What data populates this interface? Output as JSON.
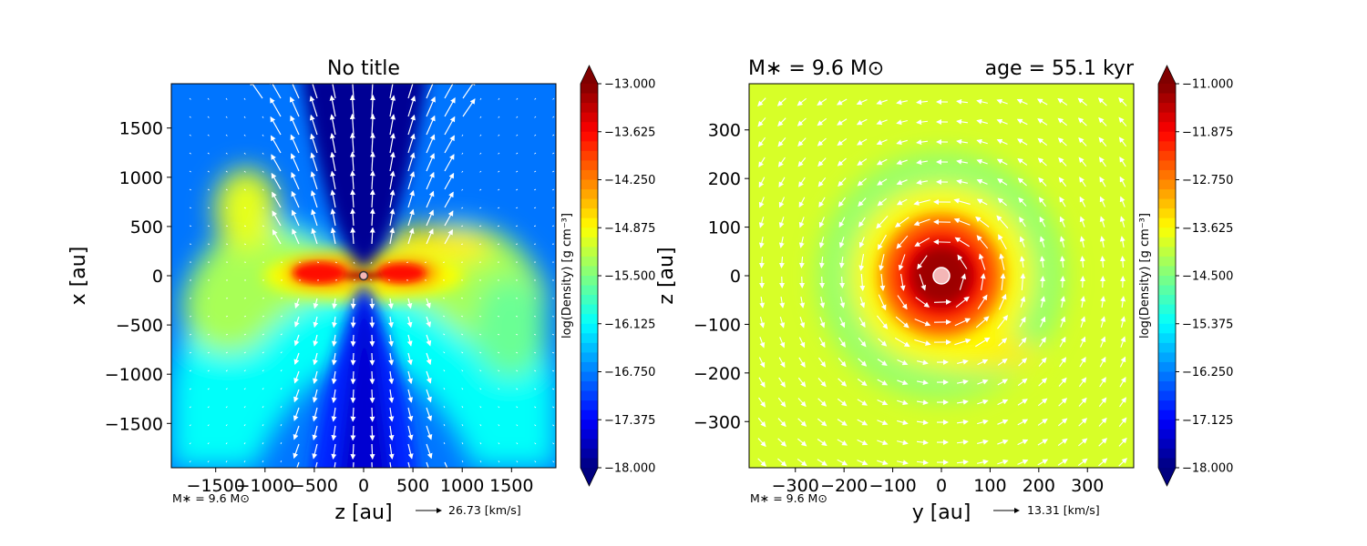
{
  "chart_data": [
    {
      "type": "heatmap",
      "title": "No title",
      "xlabel": "z [au]",
      "ylabel": "x [au]",
      "xlim": [
        -1950,
        1950
      ],
      "ylim": [
        -1950,
        1950
      ],
      "xticks": [
        -1500,
        -1000,
        -500,
        0,
        500,
        1000,
        1500
      ],
      "xtick_labels": [
        "−1500",
        "−1000",
        "−500",
        "0",
        "500",
        "1000",
        "1500"
      ],
      "yticks": [
        1500,
        1000,
        500,
        0,
        -500,
        -1000,
        -1500
      ],
      "ytick_labels": [
        "1500",
        "1000",
        "500",
        "0",
        "−500",
        "−1000",
        "−1500"
      ],
      "colorbar": {
        "label": "log(Density) [g cm⁻³]",
        "min": -18.0,
        "max": -13.0,
        "ticks": [
          -13.0,
          -13.625,
          -14.25,
          -14.875,
          -15.5,
          -16.125,
          -16.75,
          -17.375,
          -18.0
        ],
        "tick_labels": [
          "−13.000",
          "−13.625",
          "−14.250",
          "−14.875",
          "−15.500",
          "−16.125",
          "−16.750",
          "−17.375",
          "−18.000"
        ]
      },
      "mass_note": "M∗ = 9.6 M⊙",
      "velocity_key": "26.73 [km/s]",
      "background_value": -16.8,
      "features": [
        {
          "label": "outflow cavity",
          "value": -17.9,
          "shape": "cone"
        },
        {
          "label": "envelope",
          "value": -15.3,
          "shape": "hourglass"
        },
        {
          "label": "disk",
          "value": -13.8,
          "x": 0,
          "y": 0
        }
      ]
    },
    {
      "type": "heatmap",
      "title": "M∗ = 9.6 M⊙",
      "title_right": "age = 55.1 kyr",
      "xlabel": "y [au]",
      "ylabel": "z [au]",
      "xlim": [
        -395,
        395
      ],
      "ylim": [
        -395,
        395
      ],
      "xticks": [
        -300,
        -200,
        -100,
        0,
        100,
        200,
        300
      ],
      "xtick_labels": [
        "−300",
        "−200",
        "−100",
        "0",
        "100",
        "200",
        "300"
      ],
      "yticks": [
        300,
        200,
        100,
        0,
        -100,
        -200,
        -300
      ],
      "ytick_labels": [
        "300",
        "200",
        "100",
        "0",
        "−100",
        "−200",
        "−300"
      ],
      "colorbar": {
        "label": "log(Density) [g cm⁻³]",
        "min": -18.0,
        "max": -11.0,
        "ticks": [
          -11.0,
          -11.875,
          -12.75,
          -13.625,
          -14.5,
          -15.375,
          -16.25,
          -17.125,
          -18.0
        ],
        "tick_labels": [
          "−11.000",
          "−11.875",
          "−12.750",
          "−13.625",
          "−14.500",
          "−15.375",
          "−16.250",
          "−17.125",
          "−18.000"
        ]
      },
      "mass_note": "M∗ = 9.6 M⊙",
      "velocity_key": "13.31 [km/s]",
      "background_value": -13.9,
      "features": [
        {
          "label": "core",
          "value": -11.3,
          "x": 0,
          "y": 0,
          "radius": 130
        },
        {
          "label": "ring",
          "value": -14.4,
          "x": 0,
          "y": 0,
          "radius": 200
        },
        {
          "label": "arc",
          "value": -13.6,
          "x": 20,
          "y": -180
        }
      ]
    }
  ]
}
